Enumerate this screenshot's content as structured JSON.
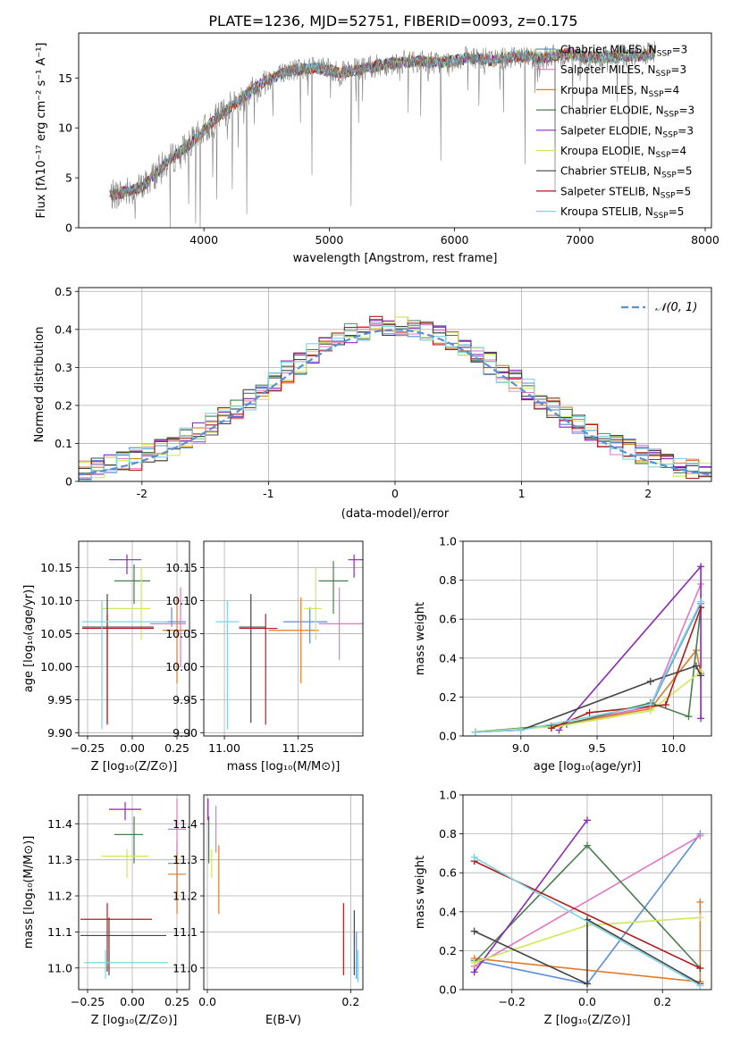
{
  "figure_title": "PLATE=1236, MJD=52751, FIBERID=0093, z=0.175",
  "models": [
    {
      "name": "Chabrier MILES, N",
      "sub": "SSP",
      "suffix": "=3",
      "color": "#5b8ed6"
    },
    {
      "name": "Salpeter MILES, N",
      "sub": "SSP",
      "suffix": "=3",
      "color": "#e377c2"
    },
    {
      "name": "Kroupa MILES, N",
      "sub": "SSP",
      "suffix": "=4",
      "color": "#e07b2c"
    },
    {
      "name": "Chabrier ELODIE, N",
      "sub": "SSP",
      "suffix": "=3",
      "color": "#4a7d4e"
    },
    {
      "name": "Salpeter ELODIE, N",
      "sub": "SSP",
      "suffix": "=3",
      "color": "#8a2ab5"
    },
    {
      "name": "Kroupa ELODIE, N",
      "sub": "SSP",
      "suffix": "=4",
      "color": "#cfe85a"
    },
    {
      "name": "Chabrier STELIB, N",
      "sub": "SSP",
      "suffix": "=5",
      "color": "#444444"
    },
    {
      "name": "Salpeter STELIB, N",
      "sub": "SSP",
      "suffix": "=5",
      "color": "#b01c1c"
    },
    {
      "name": "Kroupa STELIB, N",
      "sub": "SSP",
      "suffix": "=5",
      "color": "#7fd3e3"
    }
  ],
  "chart_data": [
    {
      "id": "spectrum",
      "type": "line",
      "xlabel": "wavelength [Angstrom, rest frame]",
      "ylabel": "Flux [fλ10⁻¹⁷ erg cm⁻² s⁻¹ A⁻¹]",
      "xlim": [
        3000,
        8050
      ],
      "ylim": [
        0,
        19.5
      ],
      "xticks": [
        4000,
        5000,
        6000,
        7000,
        8000
      ],
      "yticks": [
        0,
        5,
        10,
        15
      ],
      "continuum": {
        "x": [
          3250,
          3500,
          3700,
          3900,
          4100,
          4300,
          4500,
          4700,
          4900,
          5100,
          5300,
          5500,
          5700,
          5900,
          6100,
          6300,
          6500,
          6700,
          6900,
          7100,
          7300,
          7500,
          7600
        ],
        "y": [
          3.2,
          4,
          6.5,
          8.5,
          11,
          13,
          14.8,
          15.8,
          16,
          15.5,
          16,
          16.5,
          16.7,
          16.5,
          17,
          16.8,
          17.2,
          17,
          17.4,
          17,
          17.2,
          17.3,
          17.5
        ]
      },
      "legend": "upper right"
    },
    {
      "id": "residuals",
      "type": "histogram",
      "xlabel": "(data-model)/error",
      "ylabel": "Normed distribution",
      "xlim": [
        -2.5,
        2.5
      ],
      "ylim": [
        0,
        0.51
      ],
      "xticks": [
        -2,
        -1,
        0,
        1,
        2
      ],
      "yticks": [
        0,
        0.1,
        0.2,
        0.3,
        0.4,
        0.5
      ],
      "bin_width": 0.1,
      "reference_label": "𝒩(0, 1)",
      "grid": true,
      "legend": "upper right"
    },
    {
      "id": "age_vs_Z",
      "type": "scatter",
      "xlabel": "Z [log₁₀(Z/Z⊙)]",
      "ylabel": "age  [log₁₀(age/yr)]",
      "xlim": [
        -0.3,
        0.32
      ],
      "ylim": [
        9.895,
        10.19
      ],
      "xticks": [
        -0.25,
        0,
        0.25
      ],
      "xticklabels": [
        "−0.25",
        "0.00",
        "0.25"
      ],
      "yticks": [
        9.9,
        9.95,
        10,
        10.05,
        10.1,
        10.15
      ],
      "yticklabels": [
        "9.90",
        "9.95",
        "10.00",
        "10.05",
        "10.10",
        "10.15"
      ],
      "points": [
        {
          "m": 0,
          "x": 0.22,
          "y": 10.068,
          "xe": [
            0.18,
            0.3
          ],
          "ye": [
            10.06,
            10.09
          ]
        },
        {
          "m": 1,
          "x": 0.27,
          "y": 10.065,
          "xe": [
            0.1,
            0.3
          ],
          "ye": [
            10.0,
            10.12
          ]
        },
        {
          "m": 2,
          "x": 0.25,
          "y": 10.055,
          "xe": [
            0.17,
            0.3
          ],
          "ye": [
            9.975,
            10.105
          ]
        },
        {
          "m": 3,
          "x": 0.01,
          "y": 10.13,
          "xe": [
            -0.1,
            0.1
          ],
          "ye": [
            10.095,
            10.155
          ]
        },
        {
          "m": 4,
          "x": -0.03,
          "y": 10.162,
          "xe": [
            -0.13,
            0.05
          ],
          "ye": [
            10.14,
            10.17
          ]
        },
        {
          "m": 5,
          "x": 0.05,
          "y": 10.088,
          "xe": [
            -0.17,
            0.1
          ],
          "ye": [
            10.04,
            10.15
          ]
        },
        {
          "m": 6,
          "x": -0.14,
          "y": 10.06,
          "xe": [
            -0.28,
            0.12
          ],
          "ye": [
            9.915,
            10.11
          ]
        },
        {
          "m": 7,
          "x": -0.14,
          "y": 10.058,
          "xe": [
            -0.28,
            0.12
          ],
          "ye": [
            9.912,
            10.08
          ]
        },
        {
          "m": 8,
          "x": -0.17,
          "y": 10.068,
          "xe": [
            -0.28,
            0.2
          ],
          "ye": [
            9.905,
            10.1
          ]
        }
      ]
    },
    {
      "id": "age_vs_mass",
      "type": "scatter",
      "xlabel": "mass [log₁₀(M/M⊙)]",
      "ylabel": "",
      "xlim": [
        10.93,
        11.47
      ],
      "ylim": [
        9.895,
        10.19
      ],
      "xticks": [
        11.0,
        11.25
      ],
      "xticklabels": [
        "11.00",
        "11.25"
      ],
      "yticks": [
        9.9,
        9.95,
        10,
        10.05,
        10.1,
        10.15
      ],
      "yticklabels": [
        "9.90",
        "9.95",
        "10.00",
        "10.05",
        "10.10",
        "10.15"
      ],
      "points": [
        {
          "m": 0,
          "x": 11.29,
          "y": 10.068,
          "xe": [
            11.2,
            11.35
          ],
          "ye": [
            10.035,
            10.09
          ]
        },
        {
          "m": 1,
          "x": 11.39,
          "y": 10.065,
          "xe": [
            11.32,
            11.47
          ],
          "ye": [
            10.01,
            10.12
          ]
        },
        {
          "m": 2,
          "x": 11.26,
          "y": 10.055,
          "xe": [
            11.15,
            11.32
          ],
          "ye": [
            9.975,
            10.105
          ]
        },
        {
          "m": 3,
          "x": 11.37,
          "y": 10.13,
          "xe": [
            11.32,
            11.42
          ],
          "ye": [
            10.08,
            10.16
          ]
        },
        {
          "m": 4,
          "x": 11.44,
          "y": 10.162,
          "xe": [
            11.42,
            11.47
          ],
          "ye": [
            10.135,
            10.17
          ]
        },
        {
          "m": 5,
          "x": 11.31,
          "y": 10.088,
          "xe": [
            11.27,
            11.33
          ],
          "ye": [
            10.04,
            10.15
          ]
        },
        {
          "m": 6,
          "x": 11.09,
          "y": 10.06,
          "xe": [
            11.05,
            11.14
          ],
          "ye": [
            9.915,
            10.11
          ]
        },
        {
          "m": 7,
          "x": 11.14,
          "y": 10.058,
          "xe": [
            11.05,
            11.18
          ],
          "ye": [
            9.912,
            10.08
          ]
        },
        {
          "m": 8,
          "x": 11.01,
          "y": 10.068,
          "xe": [
            10.97,
            11.05
          ],
          "ye": [
            9.905,
            10.1
          ]
        }
      ]
    },
    {
      "id": "weight_vs_age",
      "type": "line",
      "xlabel": "age  [log₁₀(age/yr)]",
      "ylabel": "mass weight",
      "xlim": [
        8.62,
        10.25
      ],
      "ylim": [
        0,
        1
      ],
      "xticks": [
        9.0,
        9.5,
        10.0
      ],
      "xticklabels": [
        "9.0",
        "9.5",
        "10.0"
      ],
      "yticks": [
        0,
        0.2,
        0.4,
        0.6,
        0.8,
        1.0
      ],
      "yticklabels": [
        "0.0",
        "0.2",
        "0.4",
        "0.6",
        "0.8",
        "1.0"
      ],
      "series": [
        {
          "m": 0,
          "x": [
            8.7,
            9.2,
            9.85,
            10.18
          ],
          "y": [
            0.02,
            0.05,
            0.15,
            0.68
          ]
        },
        {
          "m": 1,
          "x": [
            8.7,
            9.2,
            9.85,
            10.18
          ],
          "y": [
            0.02,
            0.05,
            0.15,
            0.78
          ]
        },
        {
          "m": 2,
          "x": [
            8.7,
            9.2,
            9.85,
            10.15,
            10.18
          ],
          "y": [
            0.02,
            0.05,
            0.14,
            0.44,
            0.32
          ]
        },
        {
          "m": 3,
          "x": [
            8.7,
            9.3,
            9.85,
            10.1,
            10.18
          ],
          "y": [
            0.02,
            0.06,
            0.17,
            0.1,
            0.66
          ]
        },
        {
          "m": 4,
          "x": [
            9.25,
            10.18,
            10.18
          ],
          "y": [
            0.03,
            0.87,
            0.09
          ]
        },
        {
          "m": 5,
          "x": [
            8.7,
            9.25,
            9.85,
            10.18
          ],
          "y": [
            0.02,
            0.05,
            0.13,
            0.33
          ]
        },
        {
          "m": 6,
          "x": [
            8.7,
            9.0,
            9.85,
            10.15,
            10.18
          ],
          "y": [
            0.02,
            0.03,
            0.28,
            0.36,
            0.31
          ]
        },
        {
          "m": 7,
          "x": [
            9.2,
            9.45,
            9.95,
            10.18
          ],
          "y": [
            0.04,
            0.12,
            0.16,
            0.66
          ]
        },
        {
          "m": 8,
          "x": [
            8.7,
            9.0,
            9.85,
            10.18
          ],
          "y": [
            0.02,
            0.03,
            0.16,
            0.69
          ]
        }
      ]
    },
    {
      "id": "mass_vs_Z",
      "type": "scatter",
      "xlabel": "Z [log₁₀(Z/Z⊙)]",
      "ylabel": "mass [log₁₀(M/M⊙)]",
      "xlim": [
        -0.3,
        0.32
      ],
      "ylim": [
        10.94,
        11.48
      ],
      "xticks": [
        -0.25,
        0,
        0.25
      ],
      "xticklabels": [
        "−0.25",
        "0.00",
        "0.25"
      ],
      "yticks": [
        11.0,
        11.1,
        11.2,
        11.3,
        11.4
      ],
      "yticklabels": [
        "11.0",
        "11.1",
        "11.2",
        "11.3",
        "11.4"
      ],
      "points": [
        {
          "m": 0,
          "x": 0.25,
          "y": 11.29,
          "xe": [
            0.2,
            0.3
          ],
          "ye": [
            11.2,
            11.35
          ]
        },
        {
          "m": 1,
          "x": 0.25,
          "y": 11.385,
          "xe": [
            0.2,
            0.3
          ],
          "ye": [
            11.32,
            11.47
          ]
        },
        {
          "m": 2,
          "x": 0.25,
          "y": 11.26,
          "xe": [
            0.2,
            0.3
          ],
          "ye": [
            11.15,
            11.32
          ]
        },
        {
          "m": 3,
          "x": 0.01,
          "y": 11.37,
          "xe": [
            -0.1,
            0.06
          ],
          "ye": [
            11.29,
            11.42
          ]
        },
        {
          "m": 4,
          "x": -0.04,
          "y": 11.44,
          "xe": [
            -0.13,
            0.05
          ],
          "ye": [
            11.41,
            11.46
          ]
        },
        {
          "m": 5,
          "x": -0.03,
          "y": 11.31,
          "xe": [
            -0.17,
            0.09
          ],
          "ye": [
            11.25,
            11.33
          ]
        },
        {
          "m": 6,
          "x": -0.13,
          "y": 11.09,
          "xe": [
            -0.29,
            0.19
          ],
          "ye": [
            10.98,
            11.14
          ]
        },
        {
          "m": 7,
          "x": -0.14,
          "y": 11.135,
          "xe": [
            -0.29,
            0.11
          ],
          "ye": [
            10.99,
            11.18
          ]
        },
        {
          "m": 8,
          "x": -0.15,
          "y": 11.015,
          "xe": [
            -0.27,
            0.2
          ],
          "ye": [
            10.97,
            11.05
          ]
        }
      ]
    },
    {
      "id": "mass_vs_ebv",
      "type": "scatter",
      "xlabel": "E(B-V)",
      "ylabel": "",
      "xlim": [
        -0.005,
        0.217
      ],
      "ylim": [
        10.94,
        11.48
      ],
      "xticks": [
        0.0,
        0.2
      ],
      "xticklabels": [
        "0.0",
        "0.2"
      ],
      "yticks": [
        11.0,
        11.1,
        11.2,
        11.3,
        11.4
      ],
      "yticklabels": [
        "11.0",
        "11.1",
        "11.2",
        "11.3",
        "11.4"
      ],
      "points": [
        {
          "m": 0,
          "x": 0.208,
          "y": 11.29,
          "ye": [
            10.97,
            11.1
          ]
        },
        {
          "m": 1,
          "x": 0.012,
          "y": 11.385,
          "ye": [
            11.32,
            11.45
          ]
        },
        {
          "m": 2,
          "x": 0.016,
          "y": 11.26,
          "ye": [
            11.15,
            11.34
          ]
        },
        {
          "m": 3,
          "x": 0.002,
          "y": 11.37,
          "ye": [
            11.29,
            11.42
          ]
        },
        {
          "m": 4,
          "x": 0.001,
          "y": 11.44,
          "ye": [
            11.41,
            11.47
          ]
        },
        {
          "m": 5,
          "x": 0.006,
          "y": 11.31,
          "ye": [
            11.25,
            11.33
          ]
        },
        {
          "m": 6,
          "x": 0.205,
          "y": 11.09,
          "ye": [
            10.98,
            11.16
          ]
        },
        {
          "m": 7,
          "x": 0.19,
          "y": 11.135,
          "ye": [
            10.98,
            11.18
          ]
        },
        {
          "m": 8,
          "x": 0.21,
          "y": 11.015,
          "ye": [
            10.96,
            11.05
          ]
        }
      ]
    },
    {
      "id": "weight_vs_Z",
      "type": "line",
      "xlabel": "Z [log₁₀(Z/Z⊙)]",
      "ylabel": "mass weight",
      "xlim": [
        -0.33,
        0.33
      ],
      "ylim": [
        0,
        1
      ],
      "xticks": [
        -0.2,
        0.0,
        0.2
      ],
      "xticklabels": [
        "−0.2",
        "0.0",
        "0.2"
      ],
      "yticks": [
        0,
        0.2,
        0.4,
        0.6,
        0.8,
        1.0
      ],
      "yticklabels": [
        "0.0",
        "0.2",
        "0.4",
        "0.6",
        "0.8",
        "1.0"
      ],
      "series": [
        {
          "m": 0,
          "x": [
            -0.3,
            0.0,
            0.3
          ],
          "y": [
            0.15,
            0.03,
            0.8
          ]
        },
        {
          "m": 1,
          "x": [
            -0.3,
            0.3
          ],
          "y": [
            0.12,
            0.79
          ]
        },
        {
          "m": 2,
          "x": [
            -0.3,
            0.3,
            0.3
          ],
          "y": [
            0.16,
            0.04,
            0.45
          ]
        },
        {
          "m": 3,
          "x": [
            -0.3,
            0.0,
            0.3
          ],
          "y": [
            0.14,
            0.74,
            0.11
          ]
        },
        {
          "m": 4,
          "x": [
            -0.3,
            0.0
          ],
          "y": [
            0.09,
            0.87
          ]
        },
        {
          "m": 5,
          "x": [
            -0.3,
            0.0,
            0.3
          ],
          "y": [
            0.14,
            0.33,
            0.37
          ]
        },
        {
          "m": 6,
          "x": [
            -0.3,
            0.0,
            0.0,
            0.3
          ],
          "y": [
            0.3,
            0.03,
            0.36,
            0.03
          ]
        },
        {
          "m": 7,
          "x": [
            -0.3,
            0.3
          ],
          "y": [
            0.66,
            0.11
          ]
        },
        {
          "m": 8,
          "x": [
            -0.3,
            0.3
          ],
          "y": [
            0.68,
            0.02
          ]
        }
      ]
    }
  ]
}
